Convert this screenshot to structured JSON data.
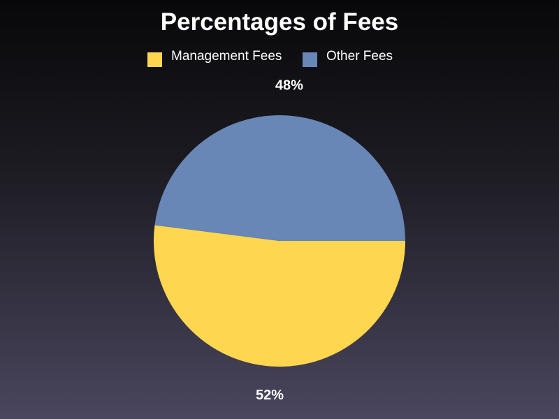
{
  "chart_data": {
    "type": "pie",
    "title": "Percentages of Fees",
    "legend_placement": "top-center",
    "slices": [
      {
        "label": "Management Fees",
        "value": 52,
        "display": "52%",
        "color": "#fed650"
      },
      {
        "label": "Other Fees",
        "value": 48,
        "display": "48%",
        "color": "#6886b6"
      }
    ]
  }
}
